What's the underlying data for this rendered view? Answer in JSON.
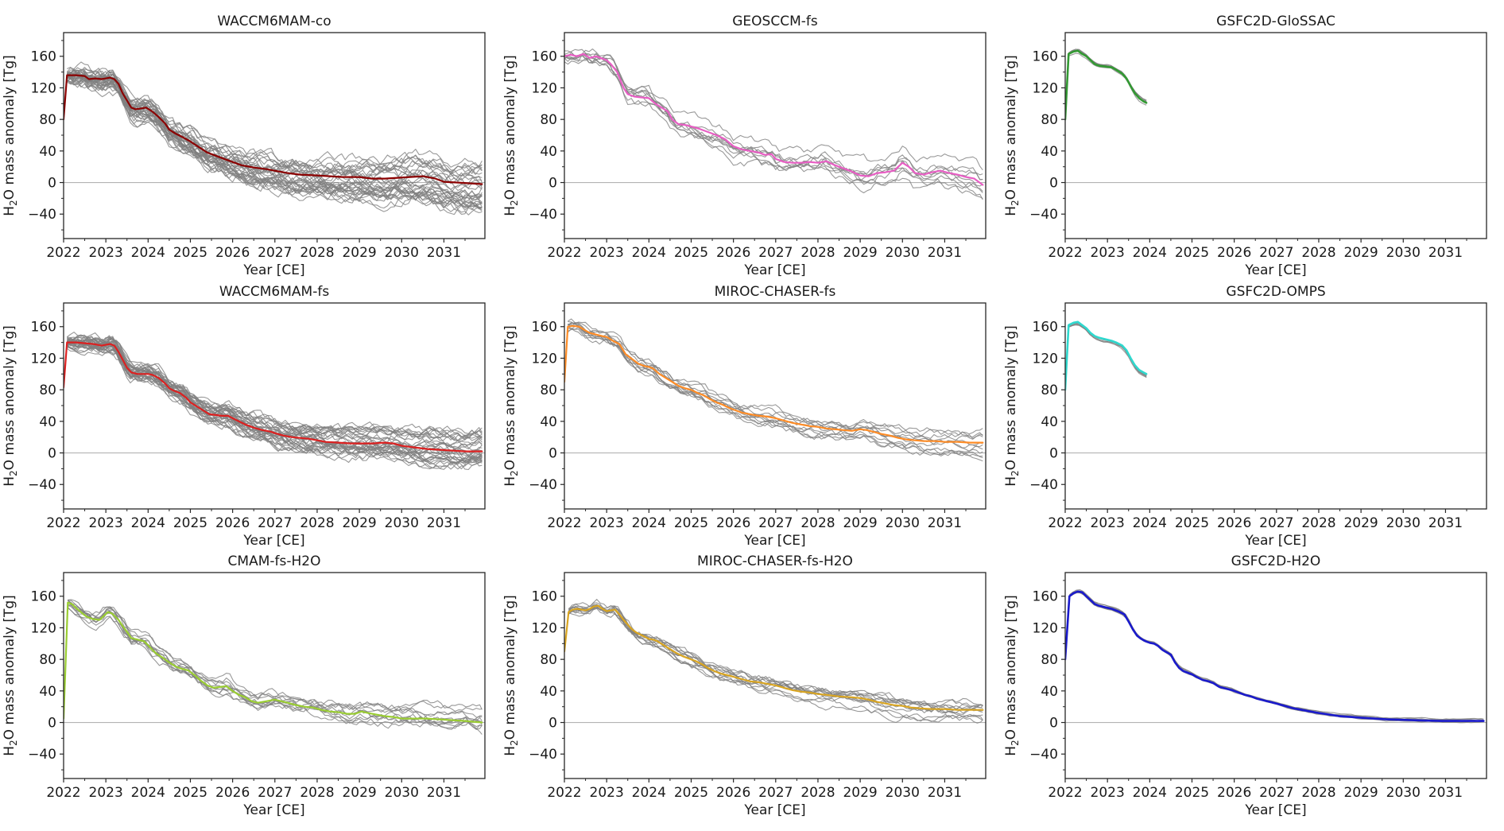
{
  "figure": {
    "xlabel": "Year [CE]",
    "ylabel_h": "H",
    "ylabel_sub": "2",
    "ylabel_rest": "O mass anomaly [Tg]",
    "x_tick_labels": [
      "2022",
      "2023",
      "2024",
      "2025",
      "2026",
      "2027",
      "2028",
      "2029",
      "2030",
      "2031"
    ],
    "y_tick_labels": [
      "−40",
      "0",
      "40",
      "80",
      "120",
      "160"
    ],
    "x_ticks": [
      2022,
      2023,
      2024,
      2025,
      2026,
      2027,
      2028,
      2029,
      2030,
      2031
    ],
    "y_ticks": [
      -40,
      0,
      40,
      80,
      120,
      160
    ],
    "y_minor_ticks": [
      -60,
      -20,
      20,
      60,
      100,
      140,
      180
    ],
    "x_range": [
      2022,
      2031.97
    ],
    "y_range": [
      -71,
      190
    ],
    "axis_color": "#262626",
    "zero_line_color": "#b3b3b3",
    "ensemble_color": "#7f7f7f",
    "background": "#ffffff"
  },
  "chart_data": [
    {
      "type": "line",
      "title": "WACCM6MAM-co",
      "xlabel": "Year [CE]",
      "ylabel": "H2O mass anomaly [Tg]",
      "mean_color": "#8B0000",
      "mean_width": 2.2,
      "ensemble": {
        "count": 34,
        "spread_start": 6,
        "spread_end": 38,
        "wiggle": 10,
        "seed": 11
      },
      "x": [
        2022.0,
        2022.08,
        2022.3,
        2022.5,
        2022.6,
        2022.75,
        2022.9,
        2023.0,
        2023.1,
        2023.2,
        2023.3,
        2023.4,
        2023.5,
        2023.6,
        2023.7,
        2023.85,
        2023.95,
        2024.1,
        2024.25,
        2024.4,
        2024.5,
        2024.65,
        2024.8,
        2025.0,
        2025.2,
        2025.4,
        2025.6,
        2025.8,
        2026.0,
        2026.2,
        2026.5,
        2026.8,
        2027.0,
        2027.3,
        2027.6,
        2028.0,
        2028.3,
        2028.6,
        2029.0,
        2029.3,
        2029.6,
        2029.9,
        2030.2,
        2030.5,
        2030.8,
        2031.0,
        2031.3,
        2031.6,
        2031.9
      ],
      "mean": [
        80,
        136,
        136,
        135,
        131,
        132,
        131,
        132,
        133,
        131,
        125,
        113,
        104,
        95,
        93,
        94,
        95,
        90,
        83,
        75,
        67,
        62,
        58,
        52,
        45,
        38,
        34,
        30,
        26,
        22,
        19,
        17,
        15,
        12,
        10,
        9,
        8,
        7,
        7,
        5,
        5,
        6,
        7,
        8,
        5,
        1,
        0,
        -1,
        -2
      ]
    },
    {
      "type": "line",
      "title": "GEOSCCM-fs",
      "xlabel": "Year [CE]",
      "ylabel": "H2O mass anomaly [Tg]",
      "mean_color": "#E85EC4",
      "mean_width": 2.2,
      "ensemble": {
        "count": 9,
        "spread_start": 6,
        "spread_end": 26,
        "wiggle": 8,
        "seed": 22
      },
      "x": [
        2022.0,
        2022.15,
        2022.3,
        2022.45,
        2022.6,
        2022.75,
        2022.9,
        2023.0,
        2023.1,
        2023.25,
        2023.4,
        2023.5,
        2023.65,
        2023.8,
        2024.0,
        2024.15,
        2024.3,
        2024.45,
        2024.55,
        2024.7,
        2024.85,
        2025.0,
        2025.2,
        2025.4,
        2025.6,
        2025.8,
        2026.0,
        2026.2,
        2026.4,
        2026.6,
        2026.75,
        2026.9,
        2027.0,
        2027.2,
        2027.4,
        2027.6,
        2027.8,
        2028.0,
        2028.2,
        2028.4,
        2028.6,
        2028.8,
        2029.0,
        2029.2,
        2029.4,
        2029.6,
        2029.8,
        2030.0,
        2030.15,
        2030.3,
        2030.5,
        2030.7,
        2030.9,
        2031.1,
        2031.3,
        2031.5,
        2031.7,
        2031.9
      ],
      "mean": [
        160,
        162,
        160,
        163,
        158,
        160,
        157,
        155,
        150,
        140,
        120,
        112,
        109,
        108,
        107,
        100,
        95,
        90,
        80,
        74,
        73,
        71,
        68,
        64,
        60,
        55,
        46,
        42,
        40,
        38,
        35,
        36,
        30,
        26,
        25,
        25,
        26,
        25,
        27,
        22,
        18,
        14,
        9,
        8,
        12,
        13,
        15,
        25,
        20,
        12,
        10,
        13,
        15,
        12,
        10,
        7,
        5,
        -3
      ]
    },
    {
      "type": "line",
      "title": "GSFC2D-GloSSAC",
      "xlabel": "Year [CE]",
      "ylabel": "H2O mass anomaly [Tg]",
      "mean_color": "#339933",
      "mean_width": 2.6,
      "ensemble": {
        "count": 5,
        "spread_start": 3,
        "spread_end": 4.5,
        "wiggle": 1.2,
        "seed": 33
      },
      "x": [
        2022.0,
        2022.08,
        2022.2,
        2022.3,
        2022.4,
        2022.5,
        2022.6,
        2022.7,
        2022.8,
        2022.95,
        2023.1,
        2023.2,
        2023.35,
        2023.45,
        2023.55,
        2023.65,
        2023.75,
        2023.85,
        2023.92
      ],
      "mean": [
        80,
        163,
        166,
        167,
        163,
        160,
        155,
        150,
        148,
        147,
        146,
        143,
        138,
        132,
        122,
        113,
        107,
        103,
        101
      ]
    },
    {
      "type": "line",
      "title": "WACCM6MAM-fs",
      "xlabel": "Year [CE]",
      "ylabel": "H2O mass anomaly [Tg]",
      "mean_color": "#DC2020",
      "mean_width": 2.2,
      "ensemble": {
        "count": 34,
        "spread_start": 5,
        "spread_end": 28,
        "wiggle": 8,
        "seed": 44
      },
      "x": [
        2022.0,
        2022.08,
        2022.3,
        2022.5,
        2022.7,
        2022.9,
        2023.0,
        2023.1,
        2023.2,
        2023.3,
        2023.4,
        2023.5,
        2023.6,
        2023.75,
        2023.9,
        2024.0,
        2024.1,
        2024.25,
        2024.4,
        2024.5,
        2024.6,
        2024.75,
        2024.9,
        2025.0,
        2025.15,
        2025.3,
        2025.45,
        2025.6,
        2025.75,
        2025.9,
        2026.0,
        2026.15,
        2026.3,
        2026.5,
        2026.7,
        2026.9,
        2027.0,
        2027.2,
        2027.4,
        2027.6,
        2027.8,
        2028.0,
        2028.2,
        2028.5,
        2028.8,
        2029.0,
        2029.3,
        2029.6,
        2029.8,
        2030.0,
        2030.3,
        2030.6,
        2030.9,
        2031.2,
        2031.5,
        2031.9
      ],
      "mean": [
        83,
        140,
        140,
        139,
        138,
        136,
        137,
        138,
        136,
        128,
        118,
        108,
        102,
        100,
        100,
        100,
        99,
        95,
        88,
        82,
        79,
        76,
        70,
        64,
        59,
        54,
        49,
        48,
        47,
        47,
        44,
        40,
        36,
        32,
        29,
        27,
        25,
        22,
        20,
        19,
        18,
        16,
        14,
        13,
        12,
        12,
        12,
        13,
        12,
        9,
        7,
        5,
        4,
        3,
        2,
        2
      ]
    },
    {
      "type": "line",
      "title": "MIROC-CHASER-fs",
      "xlabel": "Year [CE]",
      "ylabel": "H2O mass anomaly [Tg]",
      "mean_color": "#FF8C26",
      "mean_width": 2.2,
      "ensemble": {
        "count": 11,
        "spread_start": 5,
        "spread_end": 16,
        "wiggle": 6,
        "seed": 55
      },
      "x": [
        2022.0,
        2022.08,
        2022.2,
        2022.35,
        2022.5,
        2022.6,
        2022.75,
        2022.9,
        2023.0,
        2023.15,
        2023.3,
        2023.45,
        2023.6,
        2023.75,
        2023.9,
        2024.0,
        2024.1,
        2024.25,
        2024.4,
        2024.55,
        2024.7,
        2024.85,
        2025.0,
        2025.15,
        2025.3,
        2025.45,
        2025.6,
        2025.75,
        2025.9,
        2026.0,
        2026.2,
        2026.4,
        2026.6,
        2026.8,
        2027.0,
        2027.2,
        2027.4,
        2027.6,
        2027.8,
        2028.0,
        2028.2,
        2028.4,
        2028.6,
        2028.8,
        2029.0,
        2029.15,
        2029.3,
        2029.5,
        2029.7,
        2029.9,
        2030.1,
        2030.3,
        2030.5,
        2030.8,
        2031.0,
        2031.3,
        2031.6,
        2031.9
      ],
      "mean": [
        90,
        160,
        161,
        160,
        155,
        152,
        150,
        148,
        147,
        142,
        138,
        125,
        119,
        113,
        110,
        109,
        107,
        100,
        95,
        90,
        85,
        82,
        80,
        76,
        73,
        68,
        64,
        61,
        57,
        55,
        51,
        49,
        47,
        46,
        44,
        41,
        38,
        36,
        34,
        33,
        31,
        30,
        29,
        28,
        30,
        29,
        27,
        24,
        22,
        19,
        17,
        16,
        15,
        15,
        14,
        14,
        13,
        13
      ]
    },
    {
      "type": "line",
      "title": "GSFC2D-OMPS",
      "xlabel": "Year [CE]",
      "ylabel": "H2O mass anomaly [Tg]",
      "mean_color": "#2FD8CE",
      "mean_width": 2.6,
      "ensemble": {
        "count": 5,
        "spread_start": 3,
        "spread_end": 4.5,
        "wiggle": 1.2,
        "seed": 66
      },
      "x": [
        2022.0,
        2022.08,
        2022.2,
        2022.3,
        2022.4,
        2022.5,
        2022.6,
        2022.7,
        2022.8,
        2022.95,
        2023.1,
        2023.2,
        2023.35,
        2023.45,
        2023.55,
        2023.65,
        2023.75,
        2023.85,
        2023.92
      ],
      "mean": [
        80,
        162,
        165,
        166,
        162,
        158,
        152,
        148,
        146,
        144,
        142,
        140,
        136,
        130,
        120,
        111,
        105,
        102,
        100
      ]
    },
    {
      "type": "line",
      "title": "CMAM-fs-H2O",
      "xlabel": "Year [CE]",
      "ylabel": "H2O mass anomaly [Tg]",
      "mean_color": "#9ACD32",
      "mean_width": 2.2,
      "ensemble": {
        "count": 11,
        "spread_start": 6,
        "spread_end": 18,
        "wiggle": 7,
        "seed": 77
      },
      "x": [
        2022.0,
        2022.1,
        2022.2,
        2022.3,
        2022.45,
        2022.55,
        2022.7,
        2022.85,
        2022.95,
        2023.05,
        2023.15,
        2023.3,
        2023.4,
        2023.5,
        2023.6,
        2023.75,
        2023.9,
        2024.0,
        2024.1,
        2024.2,
        2024.35,
        2024.5,
        2024.65,
        2024.8,
        2024.95,
        2025.1,
        2025.25,
        2025.4,
        2025.55,
        2025.7,
        2025.85,
        2026.0,
        2026.15,
        2026.3,
        2026.45,
        2026.6,
        2026.8,
        2027.0,
        2027.15,
        2027.3,
        2027.5,
        2027.7,
        2027.9,
        2028.1,
        2028.3,
        2028.5,
        2028.7,
        2028.9,
        2029.05,
        2029.2,
        2029.4,
        2029.6,
        2029.8,
        2030.0,
        2030.3,
        2030.6,
        2030.9,
        2031.2,
        2031.5,
        2031.7,
        2031.9
      ],
      "mean": [
        5,
        152,
        150,
        145,
        138,
        134,
        131,
        130,
        135,
        140,
        138,
        130,
        122,
        115,
        107,
        105,
        103,
        98,
        92,
        87,
        82,
        76,
        71,
        68,
        66,
        60,
        53,
        47,
        44,
        45,
        46,
        40,
        35,
        32,
        27,
        25,
        27,
        29,
        27,
        25,
        22,
        20,
        19,
        16,
        14,
        13,
        11,
        11,
        14,
        12,
        10,
        8,
        7,
        5,
        5,
        5,
        4,
        3,
        2,
        1,
        0
      ]
    },
    {
      "type": "line",
      "title": "MIROC-CHASER-fs-H2O",
      "xlabel": "Year [CE]",
      "ylabel": "H2O mass anomaly [Tg]",
      "mean_color": "#D9A521",
      "mean_width": 2.2,
      "ensemble": {
        "count": 12,
        "spread_start": 5,
        "spread_end": 14,
        "wiggle": 6,
        "seed": 88
      },
      "x": [
        2022.0,
        2022.1,
        2022.2,
        2022.3,
        2022.4,
        2022.5,
        2022.6,
        2022.7,
        2022.8,
        2022.9,
        2023.0,
        2023.1,
        2023.2,
        2023.3,
        2023.4,
        2023.5,
        2023.6,
        2023.7,
        2023.85,
        2024.0,
        2024.1,
        2024.2,
        2024.35,
        2024.5,
        2024.65,
        2024.8,
        2024.95,
        2025.1,
        2025.25,
        2025.4,
        2025.55,
        2025.7,
        2025.85,
        2026.0,
        2026.2,
        2026.4,
        2026.6,
        2026.8,
        2027.0,
        2027.2,
        2027.4,
        2027.6,
        2027.8,
        2028.0,
        2028.2,
        2028.5,
        2028.8,
        2029.0,
        2029.2,
        2029.4,
        2029.6,
        2029.8,
        2030.0,
        2030.2,
        2030.4,
        2030.7,
        2031.0,
        2031.3,
        2031.6,
        2031.9
      ],
      "mean": [
        90,
        140,
        143,
        144,
        143,
        142,
        144,
        147,
        148,
        144,
        141,
        142,
        143,
        137,
        130,
        124,
        118,
        114,
        110,
        106,
        105,
        103,
        98,
        93,
        88,
        84,
        81,
        78,
        74,
        69,
        65,
        62,
        60,
        58,
        55,
        52,
        51,
        49,
        47,
        44,
        41,
        39,
        38,
        36,
        35,
        33,
        32,
        31,
        29,
        26,
        24,
        22,
        21,
        19,
        18,
        17,
        17,
        16,
        16,
        16
      ]
    },
    {
      "type": "line",
      "title": "GSFC2D-H2O",
      "xlabel": "Year [CE]",
      "ylabel": "H2O mass anomaly [Tg]",
      "mean_color": "#1A1ACC",
      "mean_width": 2.6,
      "ensemble": {
        "count": 6,
        "spread_start": 2.5,
        "spread_end": 3.5,
        "wiggle": 1.0,
        "seed": 99
      },
      "x": [
        2022.0,
        2022.1,
        2022.2,
        2022.3,
        2022.4,
        2022.5,
        2022.6,
        2022.7,
        2022.8,
        2022.95,
        2023.1,
        2023.25,
        2023.4,
        2023.5,
        2023.6,
        2023.7,
        2023.8,
        2023.9,
        2024.0,
        2024.1,
        2024.2,
        2024.3,
        2024.4,
        2024.5,
        2024.6,
        2024.7,
        2024.8,
        2024.9,
        2025.0,
        2025.1,
        2025.25,
        2025.4,
        2025.5,
        2025.65,
        2025.8,
        2025.95,
        2026.1,
        2026.25,
        2026.4,
        2026.55,
        2026.7,
        2026.85,
        2027.0,
        2027.2,
        2027.4,
        2027.6,
        2027.8,
        2028.0,
        2028.25,
        2028.5,
        2028.75,
        2029.0,
        2029.3,
        2029.6,
        2029.9,
        2030.2,
        2030.5,
        2030.9,
        2031.3,
        2031.6,
        2031.9
      ],
      "mean": [
        80,
        160,
        164,
        166,
        165,
        160,
        155,
        150,
        148,
        146,
        144,
        141,
        137,
        128,
        118,
        110,
        106,
        103,
        101,
        100,
        97,
        92,
        89,
        86,
        76,
        69,
        65,
        63,
        61,
        58,
        54,
        52,
        50,
        45,
        43,
        41,
        38,
        35,
        33,
        30,
        28,
        26,
        24,
        21,
        18,
        16,
        14,
        12,
        10,
        8,
        7,
        6,
        5,
        4,
        3.5,
        3,
        2.5,
        2,
        2,
        2,
        2
      ]
    }
  ]
}
